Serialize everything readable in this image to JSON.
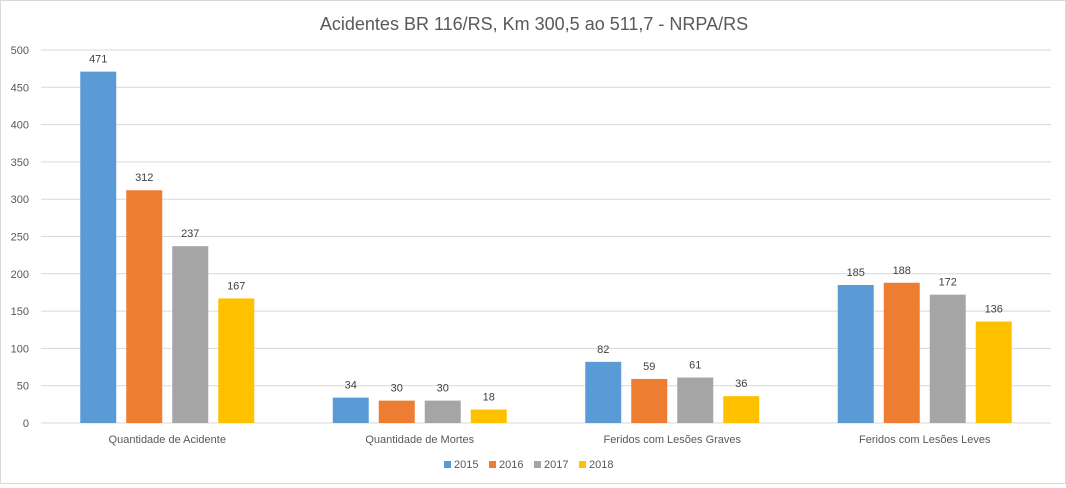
{
  "colors": {
    "2015": "#5b9bd5",
    "2016": "#ed7d31",
    "2017": "#a5a5a5",
    "2018": "#ffc000",
    "grid": "#d9d9d9",
    "text": "#595959"
  },
  "chart_data": {
    "type": "bar",
    "title": "Acidentes BR 116/RS, Km 300,5 ao 511,7 - NRPA/RS",
    "xlabel": "",
    "ylabel": "",
    "ylim": [
      0,
      500
    ],
    "yticks": [
      0,
      50,
      100,
      150,
      200,
      250,
      300,
      350,
      400,
      450,
      500
    ],
    "grid": true,
    "legend_position": "bottom",
    "categories": [
      "Quantidade de Acidente",
      "Quantidade de Mortes",
      "Feridos com Lesões Graves",
      "Feridos com Lesões Leves"
    ],
    "series": [
      {
        "name": "2015",
        "values": [
          471,
          34,
          82,
          185
        ]
      },
      {
        "name": "2016",
        "values": [
          312,
          30,
          59,
          188
        ]
      },
      {
        "name": "2017",
        "values": [
          237,
          30,
          61,
          172
        ]
      },
      {
        "name": "2018",
        "values": [
          167,
          18,
          36,
          136
        ]
      }
    ]
  }
}
